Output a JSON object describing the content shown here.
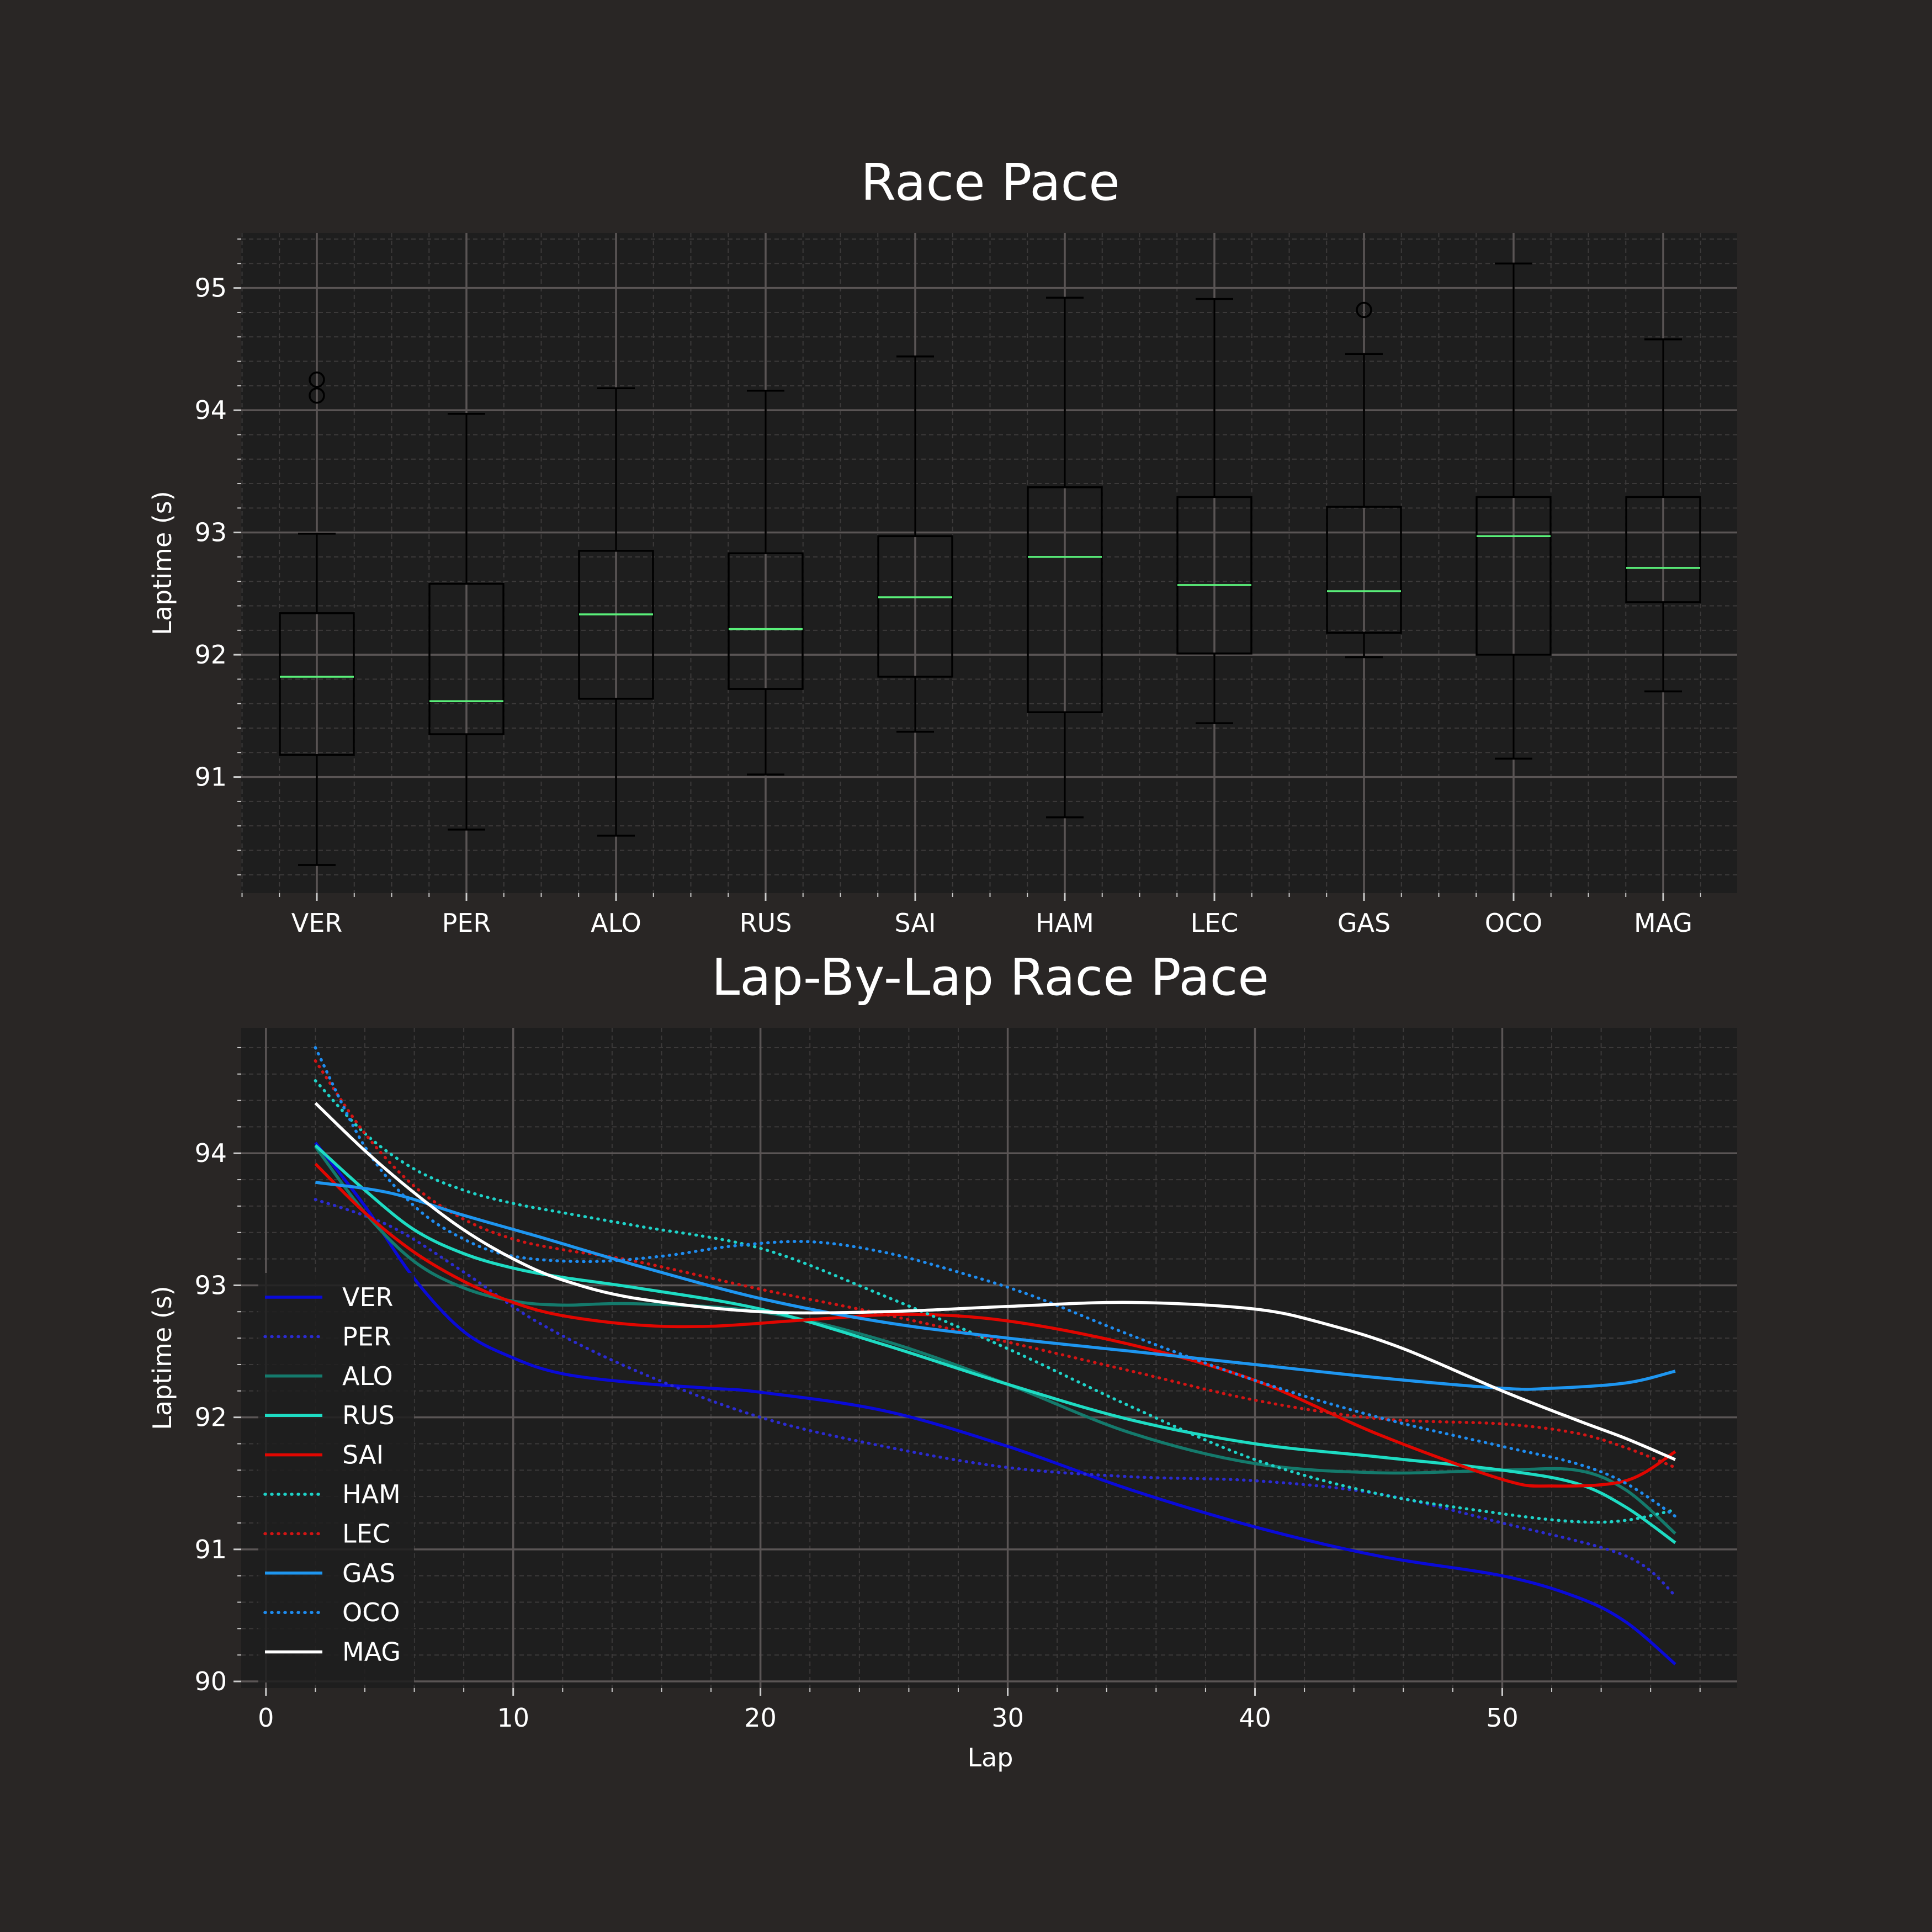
{
  "colors": {
    "figure_bg": "#292625",
    "axes_bg": "#1e1e1e",
    "grid_major": "#5a5555",
    "grid_minor": "#3c3a3a",
    "box": "#000000",
    "median": "#5af07a",
    "text": "#ffffff"
  },
  "chart_data": [
    {
      "type": "box",
      "title": "Race Pace",
      "ylabel": "Laptime (s)",
      "xlabel": "",
      "ylim": [
        90.05,
        95.45
      ],
      "yticks": [
        91,
        92,
        93,
        94,
        95
      ],
      "grid": true,
      "categories": [
        "VER",
        "PER",
        "ALO",
        "RUS",
        "SAI",
        "HAM",
        "LEC",
        "GAS",
        "OCO",
        "MAG"
      ],
      "boxes": [
        {
          "label": "VER",
          "whislo": 90.28,
          "q1": 91.18,
          "med": 91.82,
          "q3": 92.34,
          "whishi": 92.99,
          "fliers": [
            94.12,
            94.25
          ]
        },
        {
          "label": "PER",
          "whislo": 90.57,
          "q1": 91.35,
          "med": 91.62,
          "q3": 92.58,
          "whishi": 93.97,
          "fliers": []
        },
        {
          "label": "ALO",
          "whislo": 90.52,
          "q1": 91.64,
          "med": 92.33,
          "q3": 92.85,
          "whishi": 94.18,
          "fliers": []
        },
        {
          "label": "RUS",
          "whislo": 91.02,
          "q1": 91.72,
          "med": 92.21,
          "q3": 92.83,
          "whishi": 94.16,
          "fliers": []
        },
        {
          "label": "SAI",
          "whislo": 91.37,
          "q1": 91.82,
          "med": 92.47,
          "q3": 92.97,
          "whishi": 94.44,
          "fliers": []
        },
        {
          "label": "HAM",
          "whislo": 90.67,
          "q1": 91.53,
          "med": 92.8,
          "q3": 93.37,
          "whishi": 94.92,
          "fliers": []
        },
        {
          "label": "LEC",
          "whislo": 91.44,
          "q1": 92.01,
          "med": 92.57,
          "q3": 93.29,
          "whishi": 94.91,
          "fliers": []
        },
        {
          "label": "GAS",
          "whislo": 91.98,
          "q1": 92.18,
          "med": 92.52,
          "q3": 93.21,
          "whishi": 94.46,
          "fliers": [
            94.82
          ]
        },
        {
          "label": "OCO",
          "whislo": 91.15,
          "q1": 92.0,
          "med": 92.97,
          "q3": 93.29,
          "whishi": 95.2,
          "fliers": []
        },
        {
          "label": "MAG",
          "whislo": 91.7,
          "q1": 92.43,
          "med": 92.71,
          "q3": 93.29,
          "whishi": 94.58,
          "fliers": []
        }
      ]
    },
    {
      "type": "line",
      "title": "Lap-By-Lap Race Pace",
      "xlabel": "Lap",
      "ylabel": "Laptime (s)",
      "xlim": [
        -1,
        59.5
      ],
      "ylim": [
        89.95,
        94.95
      ],
      "xticks": [
        0,
        10,
        20,
        30,
        40,
        50
      ],
      "yticks": [
        90,
        91,
        92,
        93,
        94
      ],
      "grid": true,
      "legend": "left",
      "series": [
        {
          "name": "VER",
          "color": "#0a0ad8",
          "dash": "solid",
          "x": [
            2,
            4,
            6,
            8,
            10,
            12,
            15,
            18,
            20,
            25,
            30,
            35,
            40,
            45,
            50,
            53,
            55,
            57
          ],
          "y": [
            94.08,
            93.6,
            93.05,
            92.65,
            92.45,
            92.33,
            92.26,
            92.22,
            92.19,
            92.05,
            91.78,
            91.45,
            91.17,
            90.95,
            90.8,
            90.64,
            90.45,
            90.13
          ]
        },
        {
          "name": "PER",
          "color": "#2b2bd0",
          "dash": "dotted",
          "x": [
            2,
            5,
            8,
            11,
            15,
            20,
            25,
            30,
            35,
            40,
            45,
            50,
            55,
            57
          ],
          "y": [
            93.65,
            93.45,
            93.1,
            92.72,
            92.35,
            92.0,
            91.78,
            91.62,
            91.55,
            91.52,
            91.42,
            91.2,
            90.95,
            90.65
          ]
        },
        {
          "name": "ALO",
          "color": "#147a6c",
          "dash": "solid",
          "x": [
            2,
            4,
            6,
            8,
            10,
            12,
            15,
            20,
            25,
            30,
            35,
            40,
            45,
            50,
            53,
            55,
            57
          ],
          "y": [
            94.05,
            93.55,
            93.18,
            92.98,
            92.88,
            92.85,
            92.86,
            92.8,
            92.58,
            92.25,
            91.88,
            91.65,
            91.58,
            91.6,
            91.6,
            91.45,
            91.12
          ]
        },
        {
          "name": "RUS",
          "color": "#1edcc3",
          "dash": "solid",
          "x": [
            2,
            4,
            6,
            8,
            10,
            12,
            15,
            20,
            25,
            30,
            35,
            40,
            45,
            50,
            53,
            55,
            57
          ],
          "y": [
            94.06,
            93.72,
            93.42,
            93.24,
            93.13,
            93.06,
            92.98,
            92.82,
            92.55,
            92.25,
            91.98,
            91.8,
            91.7,
            91.6,
            91.5,
            91.32,
            91.05
          ]
        },
        {
          "name": "SAI",
          "color": "#e10600",
          "dash": "solid",
          "x": [
            2,
            4,
            6,
            8,
            10,
            12,
            15,
            18,
            22,
            26,
            30,
            35,
            40,
            45,
            50,
            52,
            55,
            57
          ],
          "y": [
            93.92,
            93.55,
            93.25,
            93.03,
            92.87,
            92.77,
            92.7,
            92.69,
            92.74,
            92.78,
            92.73,
            92.55,
            92.28,
            91.87,
            91.53,
            91.48,
            91.52,
            91.74
          ]
        },
        {
          "name": "HAM",
          "color": "#1ed2c8",
          "dash": "dotted",
          "x": [
            2,
            4,
            6,
            8,
            10,
            12,
            15,
            20,
            25,
            30,
            35,
            40,
            45,
            50,
            53,
            55,
            57
          ],
          "y": [
            94.55,
            94.15,
            93.88,
            93.72,
            93.62,
            93.55,
            93.45,
            93.28,
            92.92,
            92.52,
            92.08,
            91.68,
            91.42,
            91.27,
            91.21,
            91.22,
            91.3
          ]
        },
        {
          "name": "LEC",
          "color": "#d21414",
          "dash": "dotted",
          "x": [
            2,
            4,
            6,
            8,
            10,
            12,
            15,
            20,
            25,
            30,
            35,
            40,
            45,
            50,
            53,
            55,
            57
          ],
          "y": [
            94.7,
            94.15,
            93.75,
            93.5,
            93.35,
            93.27,
            93.18,
            92.97,
            92.78,
            92.57,
            92.35,
            92.13,
            91.99,
            91.95,
            91.88,
            91.77,
            91.62
          ]
        },
        {
          "name": "GAS",
          "color": "#1e96f0",
          "dash": "solid",
          "x": [
            2,
            5,
            8,
            11,
            15,
            20,
            25,
            30,
            35,
            40,
            45,
            50,
            52,
            55,
            57
          ],
          "y": [
            93.78,
            93.7,
            93.53,
            93.37,
            93.15,
            92.9,
            92.72,
            92.6,
            92.5,
            92.4,
            92.3,
            92.22,
            92.22,
            92.26,
            92.35
          ]
        },
        {
          "name": "OCO",
          "color": "#1e8cf0",
          "dash": "dotted",
          "x": [
            2,
            4,
            6,
            8,
            10,
            13,
            16,
            19,
            22,
            25,
            28,
            31,
            35,
            40,
            45,
            50,
            53,
            55,
            57
          ],
          "y": [
            94.8,
            94.05,
            93.6,
            93.35,
            93.22,
            93.18,
            93.22,
            93.3,
            93.33,
            93.25,
            93.1,
            92.92,
            92.62,
            92.28,
            92.0,
            91.78,
            91.65,
            91.5,
            91.25
          ]
        },
        {
          "name": "MAG",
          "color": "#ffffff",
          "dash": "solid",
          "x": [
            2,
            4,
            6,
            8,
            10,
            12,
            15,
            20,
            25,
            30,
            35,
            40,
            43,
            46,
            50,
            53,
            55,
            57
          ],
          "y": [
            94.38,
            94.02,
            93.7,
            93.42,
            93.2,
            93.04,
            92.9,
            92.8,
            92.8,
            92.84,
            92.87,
            92.82,
            92.7,
            92.52,
            92.2,
            91.98,
            91.84,
            91.68
          ]
        }
      ]
    }
  ]
}
